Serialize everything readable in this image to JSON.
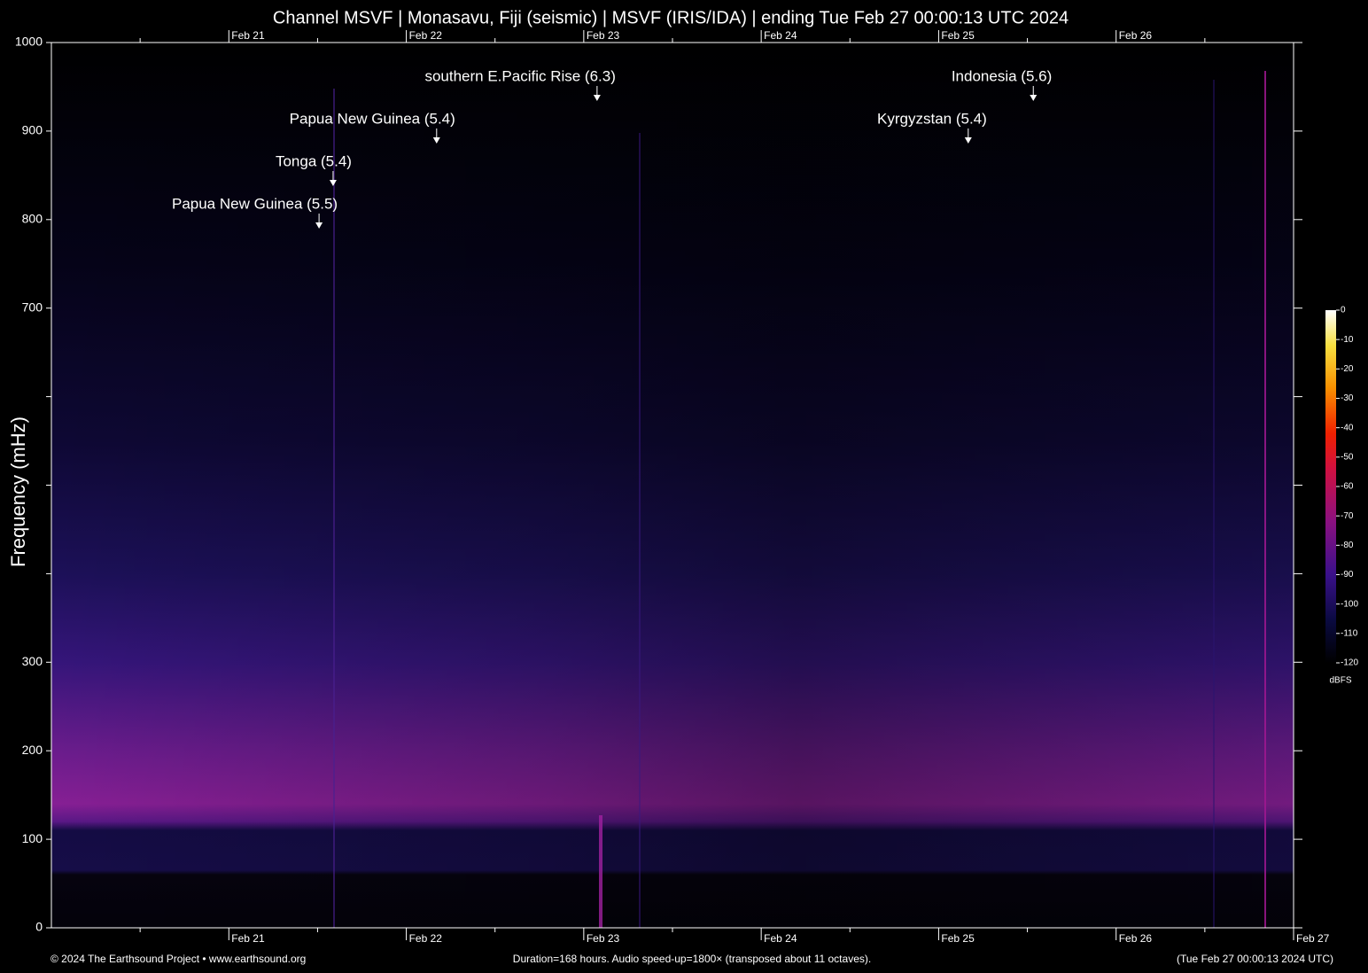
{
  "chart_data": {
    "type": "spectrogram",
    "title": "Channel MSVF | Monasavu, Fiji (seismic) | MSVF (IRIS/IDA) | ending Tue Feb 27 00:00:13 UTC 2024",
    "y_label": "Frequency (mHz)",
    "ylim": [
      0,
      1000
    ],
    "yticks": [
      0,
      100,
      200,
      300,
      700,
      800,
      900,
      1000
    ],
    "y_unlabeled_ticks": [
      400,
      500,
      600
    ],
    "xlim": [
      0,
      168
    ],
    "xticks": [
      {
        "value": 24,
        "label": "Feb 21"
      },
      {
        "value": 48,
        "label": "Feb 22"
      },
      {
        "value": 72,
        "label": "Feb 23"
      },
      {
        "value": 96,
        "label": "Feb 24"
      },
      {
        "value": 120,
        "label": "Feb 25"
      },
      {
        "value": 144,
        "label": "Feb 26"
      },
      {
        "value": 168,
        "label": "Feb 27"
      }
    ],
    "x_unlabeled_ticks": [
      12,
      36,
      60,
      84,
      108,
      132,
      156
    ],
    "annotations": [
      {
        "x": 36.2,
        "label": "Papua New Guinea (5.5)"
      },
      {
        "x": 38.1,
        "label": "Tonga (5.4)"
      },
      {
        "x": 52.1,
        "label": "Papua New Guinea (5.4)"
      },
      {
        "x": 73.8,
        "label": "southern E.Pacific Rise (6.3)"
      },
      {
        "x": 124.0,
        "label": "Kyrgyzstan (5.4)"
      },
      {
        "x": 132.8,
        "label": "Indonesia (5.6)"
      }
    ],
    "colorbar": {
      "label": "dBFS",
      "lim": [
        -120,
        0
      ],
      "ticks": [
        0,
        -10,
        -20,
        -30,
        -40,
        -50,
        -60,
        -70,
        -80,
        -90,
        -100,
        -110,
        -120
      ]
    },
    "footer_left": "© 2024 The Earthsound Project • www.earthsound.org",
    "footer_center": "Duration=168 hours. Audio speed-up=1800× (transposed about 11 octaves).",
    "footer_right": "(Tue Feb 27 00:00:13 2024 UTC)"
  }
}
